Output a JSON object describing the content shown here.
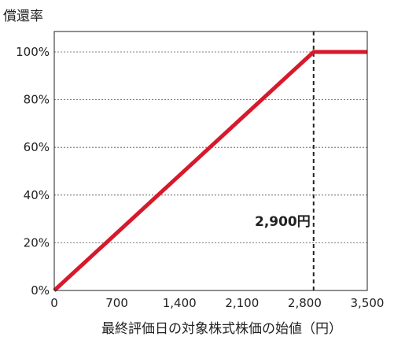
{
  "chart_data": {
    "type": "line",
    "title": "",
    "ylabel": "償還率",
    "xlabel": "最終評価日の対象株式株価の始値（円）",
    "xlim": [
      0,
      3500
    ],
    "ylim": [
      0,
      100
    ],
    "x_ticks": [
      "0",
      "700",
      "1,400",
      "2,100",
      "2,800",
      "3,500"
    ],
    "x_tick_values": [
      0,
      700,
      1400,
      2100,
      2800,
      3500
    ],
    "y_ticks": [
      "0%",
      "20%",
      "40%",
      "60%",
      "80%",
      "100%"
    ],
    "y_tick_values": [
      0,
      20,
      40,
      60,
      80,
      100
    ],
    "grid": "horizontal-dotted",
    "series": [
      {
        "x": [
          0,
          2900,
          3500
        ],
        "y": [
          0,
          100,
          100
        ],
        "color": "#d7192b"
      }
    ],
    "annotations": [
      {
        "text": "2,900円",
        "x": 2900,
        "y": 27,
        "line_style": "vertical-dashed"
      }
    ]
  }
}
